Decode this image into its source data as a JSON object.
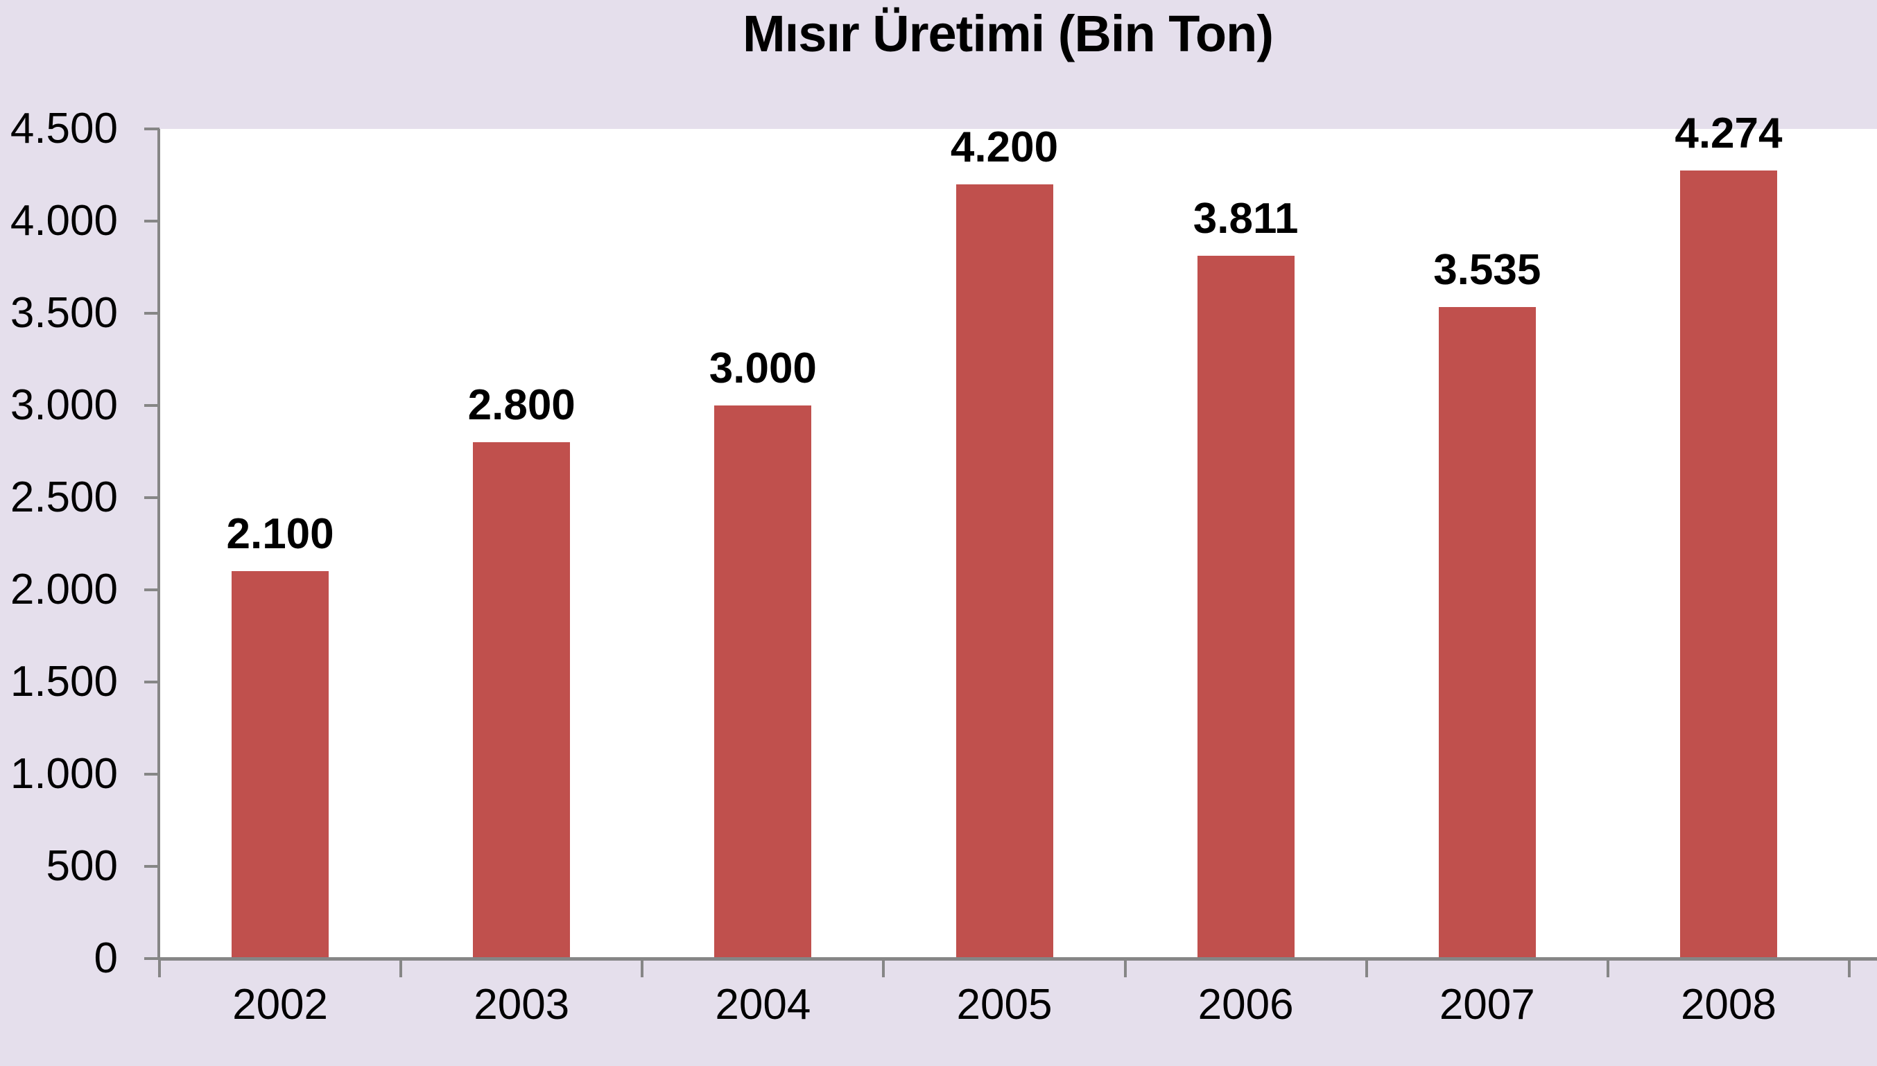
{
  "chart_data": {
    "type": "bar",
    "title": "Mısır Üretimi (Bin Ton)",
    "categories": [
      "2002",
      "2003",
      "2004",
      "2005",
      "2006",
      "2007",
      "2008"
    ],
    "values": [
      2100,
      2800,
      3000,
      4200,
      3811,
      3535,
      4274
    ],
    "value_labels": [
      "2.100",
      "2.800",
      "3.000",
      "4.200",
      "3.811",
      "3.535",
      "4.274"
    ],
    "xlabel": "",
    "ylabel": "",
    "ylim": [
      0,
      4500
    ],
    "ytick_step": 500,
    "ytick_labels": [
      "0",
      "500",
      "1.000",
      "1.500",
      "2.000",
      "2.500",
      "3.000",
      "3.500",
      "4.000",
      "4.500"
    ],
    "grid": false,
    "legend": false,
    "colors": {
      "bar": "#C0504D",
      "background": "#E5DFEC",
      "plot_background": "#FFFFFF",
      "axis": "#868686",
      "text": "#000000"
    }
  }
}
